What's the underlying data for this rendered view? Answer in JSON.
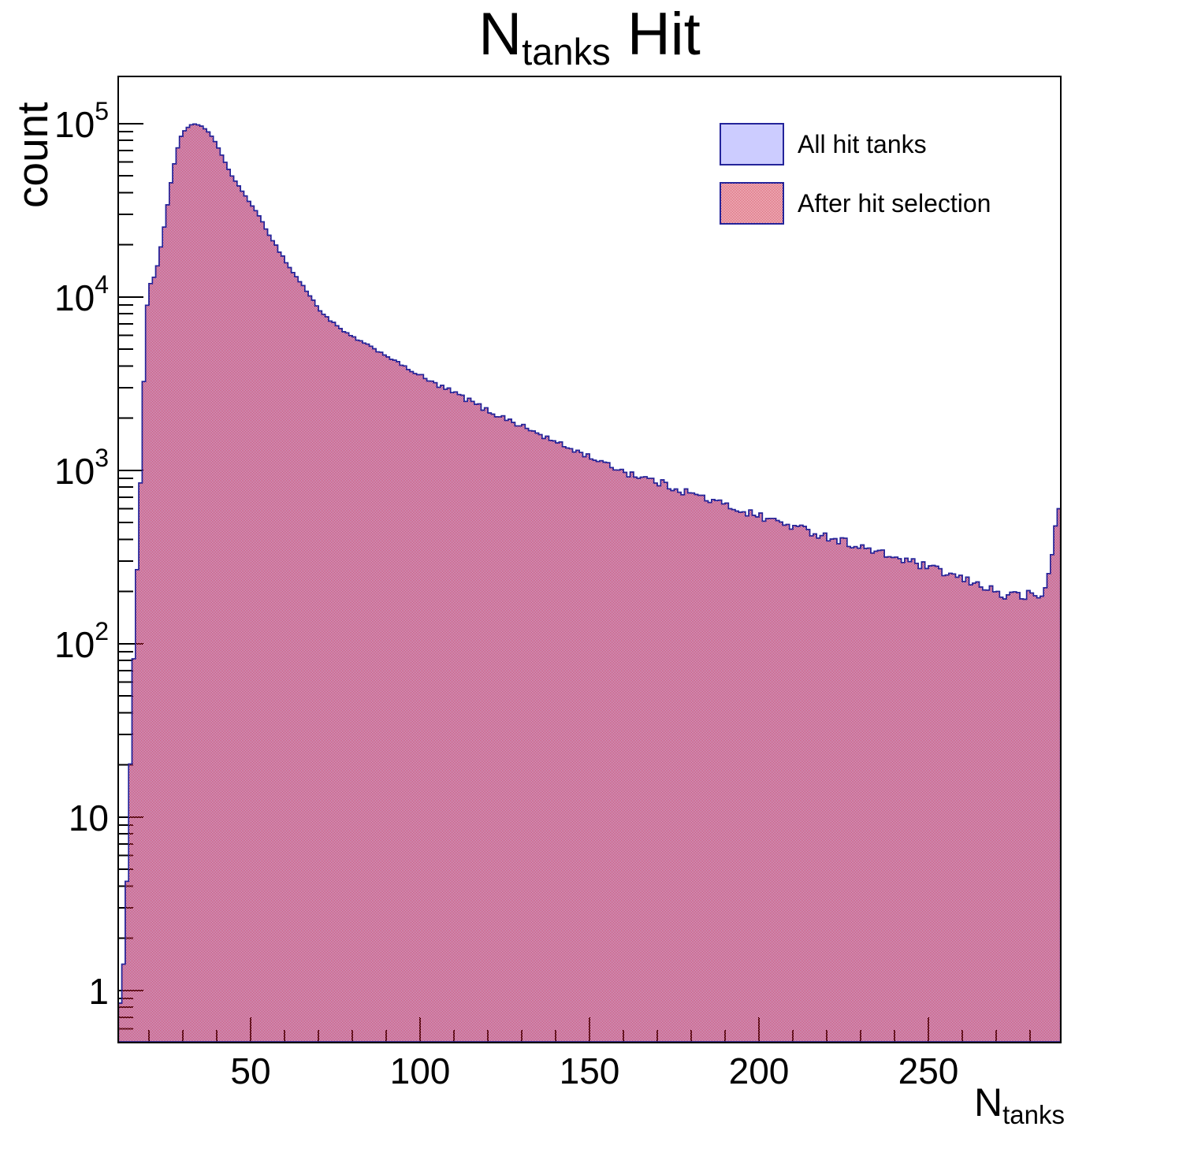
{
  "title": {
    "prefix": "N",
    "subscript": "tanks",
    "suffix": " Hit"
  },
  "axes": {
    "y": {
      "title": "count",
      "scale": "log",
      "tick_labels": [
        {
          "value": 1,
          "mantissa": "1",
          "exponent": ""
        },
        {
          "value": 10,
          "mantissa": "10",
          "exponent": ""
        },
        {
          "value": 100,
          "mantissa": "10",
          "exponent": "2"
        },
        {
          "value": 1000,
          "mantissa": "10",
          "exponent": "3"
        },
        {
          "value": 10000,
          "mantissa": "10",
          "exponent": "4"
        },
        {
          "value": 100000,
          "mantissa": "10",
          "exponent": "5"
        }
      ]
    },
    "x": {
      "title_prefix": "N",
      "title_subscript": "tanks",
      "tick_labels": [
        {
          "value": 50,
          "label": "50"
        },
        {
          "value": 100,
          "label": "100"
        },
        {
          "value": 150,
          "label": "150"
        },
        {
          "value": 200,
          "label": "200"
        },
        {
          "value": 250,
          "label": "250"
        }
      ]
    }
  },
  "legend": {
    "position": "top-right",
    "items": [
      {
        "label": "All hit tanks",
        "style": "solid"
      },
      {
        "label": "After hit selection",
        "style": "checker"
      }
    ]
  },
  "colors": {
    "fill_blue": "#ccccff",
    "hatch_red": "#cf2b44",
    "hist_border": "#24249a",
    "axis": "#000000",
    "background": "#ffffff"
  },
  "chart_data": {
    "type": "bar",
    "subtype": "histogram",
    "title": "N_{tanks} Hit",
    "xlabel": "N_{tanks}",
    "ylabel": "count",
    "y_scale": "log",
    "grid": false,
    "legend_position": "top-right",
    "x_range": [
      10.93,
      289.07
    ],
    "y_range": [
      0.5,
      187000
    ],
    "bins": [
      11,
      289
    ],
    "bin_width": 1,
    "x_ticks_major": [
      50,
      100,
      150,
      200,
      250
    ],
    "x_tick_minor_step": 10,
    "y_ticks_major": [
      1,
      10,
      100,
      1000,
      10000,
      100000
    ],
    "series": [
      {
        "name": "All hit tanks",
        "anchors": [
          [
            11,
            0.72
          ],
          [
            12,
            1
          ],
          [
            13,
            2
          ],
          [
            14,
            9
          ],
          [
            15,
            45
          ],
          [
            16,
            150
          ],
          [
            17,
            480
          ],
          [
            18,
            1500
          ],
          [
            19,
            7000
          ],
          [
            20,
            11500
          ],
          [
            21,
            12500
          ],
          [
            22,
            13500
          ],
          [
            23,
            17000
          ],
          [
            24,
            22000
          ],
          [
            25,
            29000
          ],
          [
            26,
            40000
          ],
          [
            27,
            52000
          ],
          [
            28,
            66000
          ],
          [
            29,
            80000
          ],
          [
            30,
            88000
          ],
          [
            31,
            93000
          ],
          [
            32,
            97000
          ],
          [
            33,
            99000
          ],
          [
            34,
            99000
          ],
          [
            35,
            98000
          ],
          [
            36,
            95000
          ],
          [
            37,
            92000
          ],
          [
            38,
            87000
          ],
          [
            39,
            82000
          ],
          [
            40,
            75000
          ],
          [
            41,
            69000
          ],
          [
            42,
            63000
          ],
          [
            43,
            57000
          ],
          [
            44,
            52000
          ],
          [
            45,
            48000
          ],
          [
            46,
            45000
          ],
          [
            47,
            42000
          ],
          [
            48,
            39500
          ],
          [
            49,
            37000
          ],
          [
            50,
            34500
          ],
          [
            52,
            30000
          ],
          [
            54,
            26000
          ],
          [
            56,
            22000
          ],
          [
            58,
            19000
          ],
          [
            60,
            16500
          ],
          [
            62,
            14200
          ],
          [
            64,
            12700
          ],
          [
            66,
            11200
          ],
          [
            68,
            9800
          ],
          [
            70,
            8600
          ],
          [
            72,
            7800
          ],
          [
            75,
            6900
          ],
          [
            78,
            6200
          ],
          [
            80,
            5900
          ],
          [
            85,
            5200
          ],
          [
            90,
            4600
          ],
          [
            95,
            4000
          ],
          [
            100,
            3500
          ],
          [
            105,
            3100
          ],
          [
            110,
            2800
          ],
          [
            115,
            2500
          ],
          [
            120,
            2200
          ],
          [
            125,
            2000
          ],
          [
            130,
            1800
          ],
          [
            135,
            1620
          ],
          [
            140,
            1450
          ],
          [
            145,
            1320
          ],
          [
            150,
            1200
          ],
          [
            155,
            1080
          ],
          [
            160,
            990
          ],
          [
            165,
            920
          ],
          [
            170,
            855
          ],
          [
            175,
            795
          ],
          [
            180,
            735
          ],
          [
            185,
            680
          ],
          [
            190,
            630
          ],
          [
            195,
            585
          ],
          [
            200,
            545
          ],
          [
            205,
            510
          ],
          [
            210,
            475
          ],
          [
            215,
            445
          ],
          [
            220,
            415
          ],
          [
            225,
            390
          ],
          [
            230,
            360
          ],
          [
            235,
            335
          ],
          [
            240,
            315
          ],
          [
            245,
            295
          ],
          [
            250,
            275
          ],
          [
            255,
            255
          ],
          [
            258,
            245
          ],
          [
            260,
            235
          ],
          [
            263,
            225
          ],
          [
            265,
            218
          ],
          [
            268,
            210
          ],
          [
            270,
            200
          ],
          [
            272,
            182
          ],
          [
            274,
            200
          ],
          [
            276,
            190
          ],
          [
            278,
            185
          ],
          [
            280,
            195
          ],
          [
            282,
            180
          ],
          [
            283,
            195
          ],
          [
            284,
            185
          ],
          [
            285,
            230
          ],
          [
            286,
            280
          ],
          [
            287,
            380
          ],
          [
            288,
            600
          ],
          [
            289,
            600
          ]
        ]
      },
      {
        "name": "After hit selection",
        "anchors": [
          [
            11,
            0.72
          ],
          [
            12,
            1
          ],
          [
            13,
            2
          ],
          [
            14,
            9
          ],
          [
            15,
            45
          ],
          [
            16,
            150
          ],
          [
            17,
            480
          ],
          [
            18,
            1500
          ],
          [
            19,
            7000
          ],
          [
            20,
            11500
          ],
          [
            21,
            12500
          ],
          [
            22,
            13500
          ],
          [
            23,
            17000
          ],
          [
            24,
            22000
          ],
          [
            25,
            29000
          ],
          [
            26,
            40000
          ],
          [
            27,
            52000
          ],
          [
            28,
            66000
          ],
          [
            29,
            80000
          ],
          [
            30,
            88000
          ],
          [
            31,
            93000
          ],
          [
            32,
            97000
          ],
          [
            33,
            99000
          ],
          [
            34,
            99000
          ],
          [
            35,
            98000
          ],
          [
            36,
            95000
          ],
          [
            37,
            92000
          ],
          [
            38,
            87000
          ],
          [
            39,
            82000
          ],
          [
            40,
            75000
          ],
          [
            41,
            69000
          ],
          [
            42,
            63000
          ],
          [
            43,
            57000
          ],
          [
            44,
            52000
          ],
          [
            45,
            48000
          ],
          [
            46,
            45000
          ],
          [
            47,
            42000
          ],
          [
            48,
            39500
          ],
          [
            49,
            37000
          ],
          [
            50,
            34500
          ],
          [
            52,
            30000
          ],
          [
            54,
            26000
          ],
          [
            56,
            22000
          ],
          [
            58,
            19000
          ],
          [
            60,
            16500
          ],
          [
            62,
            14200
          ],
          [
            64,
            12700
          ],
          [
            66,
            11200
          ],
          [
            68,
            9800
          ],
          [
            70,
            8600
          ],
          [
            72,
            7800
          ],
          [
            75,
            6900
          ],
          [
            78,
            6200
          ],
          [
            80,
            5900
          ],
          [
            85,
            5200
          ],
          [
            90,
            4600
          ],
          [
            95,
            4000
          ],
          [
            100,
            3500
          ],
          [
            105,
            3100
          ],
          [
            110,
            2800
          ],
          [
            115,
            2500
          ],
          [
            120,
            2200
          ],
          [
            125,
            2000
          ],
          [
            130,
            1800
          ],
          [
            135,
            1620
          ],
          [
            140,
            1450
          ],
          [
            145,
            1320
          ],
          [
            150,
            1200
          ],
          [
            155,
            1080
          ],
          [
            160,
            990
          ],
          [
            165,
            920
          ],
          [
            170,
            855
          ],
          [
            175,
            795
          ],
          [
            180,
            735
          ],
          [
            185,
            680
          ],
          [
            190,
            630
          ],
          [
            195,
            585
          ],
          [
            200,
            545
          ],
          [
            205,
            510
          ],
          [
            210,
            475
          ],
          [
            215,
            445
          ],
          [
            220,
            415
          ],
          [
            225,
            390
          ],
          [
            230,
            360
          ],
          [
            235,
            335
          ],
          [
            240,
            315
          ],
          [
            245,
            295
          ],
          [
            250,
            275
          ],
          [
            255,
            255
          ],
          [
            258,
            245
          ],
          [
            260,
            235
          ],
          [
            263,
            225
          ],
          [
            265,
            218
          ],
          [
            268,
            210
          ],
          [
            270,
            200
          ],
          [
            272,
            182
          ],
          [
            274,
            200
          ],
          [
            276,
            190
          ],
          [
            278,
            185
          ],
          [
            280,
            195
          ],
          [
            282,
            180
          ],
          [
            283,
            195
          ],
          [
            284,
            185
          ],
          [
            285,
            230
          ],
          [
            286,
            280
          ],
          [
            287,
            380
          ],
          [
            288,
            600
          ],
          [
            289,
            600
          ]
        ]
      }
    ]
  }
}
